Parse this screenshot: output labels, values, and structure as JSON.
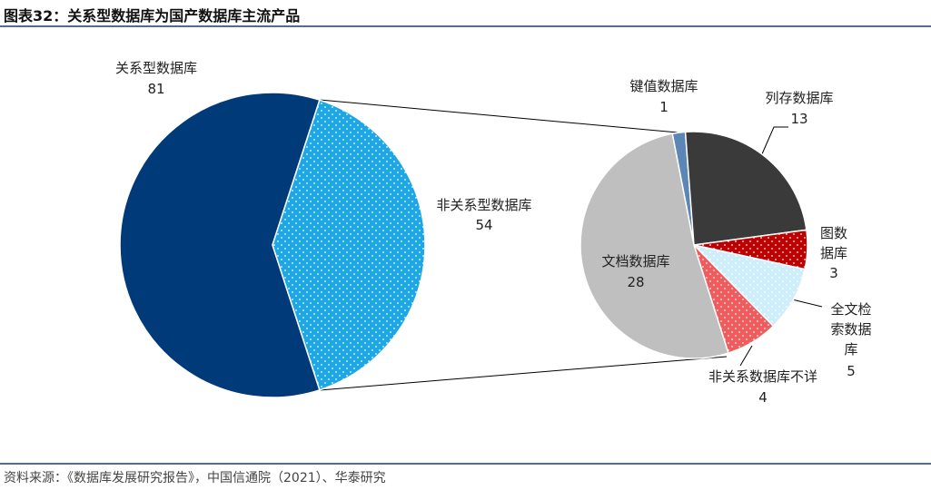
{
  "title": "图表32：关系型数据库为国产数据库主流产品",
  "source": "资料来源：《数据库发展研究报告》，中国信通院（2021）、华泰研究",
  "chart_data": [
    {
      "type": "pie",
      "categories": [
        "关系型数据库",
        "非关系型数据库"
      ],
      "values": [
        81,
        54
      ],
      "colors": [
        "#003a78",
        "#1ea7e8"
      ],
      "dotted": [
        false,
        true
      ]
    },
    {
      "type": "pie",
      "categories": [
        "键值数据库",
        "列存数据库",
        "图数据库",
        "全文检索数据库",
        "非关系数据库不详",
        "文档数据库"
      ],
      "values": [
        1,
        13,
        3,
        5,
        4,
        28
      ],
      "colors": [
        "#5b86b5",
        "#3a3a3a",
        "#c00000",
        "#cfeefc",
        "#f25b5b",
        "#bfbfbf"
      ],
      "dotted": [
        false,
        false,
        true,
        true,
        true,
        false
      ]
    }
  ]
}
